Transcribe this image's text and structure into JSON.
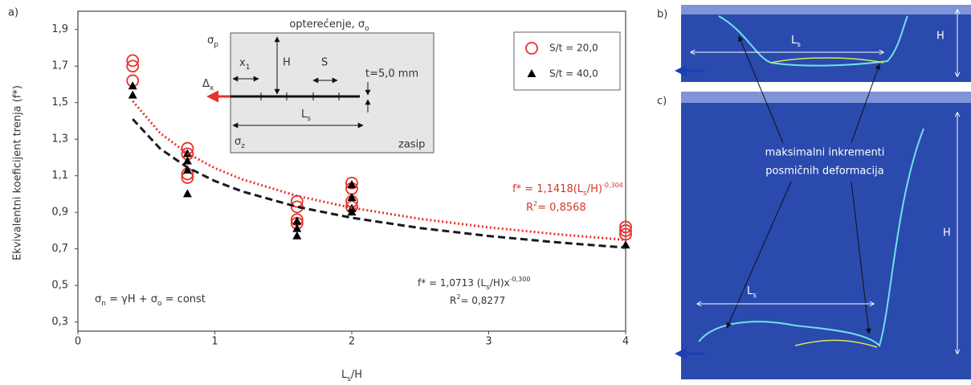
{
  "chart_data": {
    "type": "scatter",
    "panel_label": "a)",
    "xlabel": [
      {
        "text": "L"
      },
      {
        "text": "s",
        "sub": true
      },
      {
        "text": "/H"
      }
    ],
    "ylabel": "Ekvivalentni koeficijent trenja (f*)",
    "xlim": [
      0,
      4
    ],
    "ylim": [
      0.25,
      2.0
    ],
    "xticks": [
      0,
      1,
      2,
      3,
      4
    ],
    "yticks": [
      {
        "value": 0.3,
        "label": "0,3"
      },
      {
        "value": 0.5,
        "label": "0,5"
      },
      {
        "value": 0.7,
        "label": "0,7"
      },
      {
        "value": 0.9,
        "label": "0,9"
      },
      {
        "value": 1.1,
        "label": "1,1"
      },
      {
        "value": 1.3,
        "label": "1,3"
      },
      {
        "value": 1.5,
        "label": "1,5"
      },
      {
        "value": 1.7,
        "label": "1,7"
      },
      {
        "value": 1.9,
        "label": "1,9"
      }
    ],
    "series": [
      {
        "name": "S/t = 20,0",
        "color": "#e8322b",
        "marker": "circle",
        "x": [
          0.4,
          0.4,
          0.4,
          0.8,
          0.8,
          0.8,
          0.8,
          1.6,
          1.6,
          1.6,
          1.6,
          2,
          2,
          2,
          2,
          4,
          4,
          4
        ],
        "values": [
          1.73,
          1.7,
          1.62,
          1.25,
          1.22,
          1.11,
          1.09,
          0.96,
          0.93,
          0.86,
          0.84,
          1.06,
          1.03,
          0.96,
          0.93,
          0.82,
          0.8,
          0.78
        ]
      },
      {
        "name": "S/t = 40,0",
        "color": "#000000",
        "marker": "triangle",
        "x": [
          0.4,
          0.4,
          0.8,
          0.8,
          0.8,
          0.8,
          1.6,
          1.6,
          1.6,
          2,
          2,
          2,
          2,
          4
        ],
        "values": [
          1.59,
          1.54,
          1.22,
          1.18,
          1.13,
          1.0,
          0.85,
          0.81,
          0.77,
          1.05,
          0.98,
          0.92,
          0.9,
          0.72
        ]
      },
      {
        "type": "line",
        "style": "dotted",
        "color": "#e8322b",
        "x": [
          0.4,
          0.6,
          0.8,
          1,
          1.2,
          1.6,
          2,
          2.5,
          3,
          3.5,
          4
        ],
        "values": [
          1.5085,
          1.3336,
          1.222,
          1.1418,
          1.0803,
          0.9897,
          0.9249,
          0.8642,
          0.8176,
          0.7802,
          0.7491
        ]
      },
      {
        "type": "line",
        "style": "dashed",
        "color": "#1a1a1a",
        "x": [
          0.4,
          0.6,
          0.8,
          1,
          1.2,
          1.6,
          2,
          2.5,
          3,
          3.5,
          4
        ],
        "values": [
          1.4103,
          1.2487,
          1.1455,
          1.0713,
          1.0143,
          0.9304,
          0.8702,
          0.8139,
          0.7705,
          0.7357,
          0.7068
        ]
      }
    ],
    "annotations": {
      "red_fit": [
        {
          "text": "f* = 1,1418(L"
        },
        {
          "text": "s",
          "sub": true
        },
        {
          "text": "/H)"
        },
        {
          "text": "-0,304",
          "sup": true
        }
      ],
      "red_r2": [
        {
          "text": "R"
        },
        {
          "text": "2",
          "sup": true
        },
        {
          "text": "= 0,8568"
        }
      ],
      "black_fit": [
        {
          "text": "f* = 1,0713 (L"
        },
        {
          "text": "s",
          "sub": true
        },
        {
          "text": "/H)x"
        },
        {
          "text": "-0,300",
          "sup": true
        }
      ],
      "black_r2": [
        {
          "text": "R"
        },
        {
          "text": "2",
          "sup": true
        },
        {
          "text": "= 0,8277"
        }
      ],
      "sigma_n": [
        {
          "text": "σ"
        },
        {
          "text": "n",
          "sub": true
        },
        {
          "text": " = γH + σ"
        },
        {
          "text": "o",
          "sub": true
        },
        {
          "text": " = const"
        }
      ]
    }
  },
  "inset_diagram": {
    "load": [
      {
        "text": "opterećenje, σ"
      },
      {
        "text": "o",
        "sub": true
      }
    ],
    "sigma_p": [
      {
        "text": "σ"
      },
      {
        "text": "p",
        "sub": true
      }
    ],
    "x1": [
      {
        "text": "x"
      },
      {
        "text": "1",
        "sub": true
      }
    ],
    "height": "H",
    "spacing": "S",
    "thickness": "t=5,0 mm",
    "delta_x": [
      {
        "text": "Δ"
      },
      {
        "text": "x",
        "sub": true
      }
    ],
    "length": [
      {
        "text": "L"
      },
      {
        "text": "s",
        "sub": true
      }
    ],
    "sigma_z": [
      {
        "text": "σ"
      },
      {
        "text": "z",
        "sub": true
      }
    ],
    "backfill": "zasip"
  },
  "images": {
    "b": {
      "label": "b)",
      "height": "H",
      "length": [
        {
          "text": "L"
        },
        {
          "text": "s",
          "sub": true
        }
      ]
    },
    "c": {
      "label": "c)",
      "height": "H",
      "length": [
        {
          "text": "L"
        },
        {
          "text": "s",
          "sub": true
        }
      ],
      "annotation": [
        "maksimalni inkrementi",
        "posmičnih deformacija"
      ]
    }
  }
}
